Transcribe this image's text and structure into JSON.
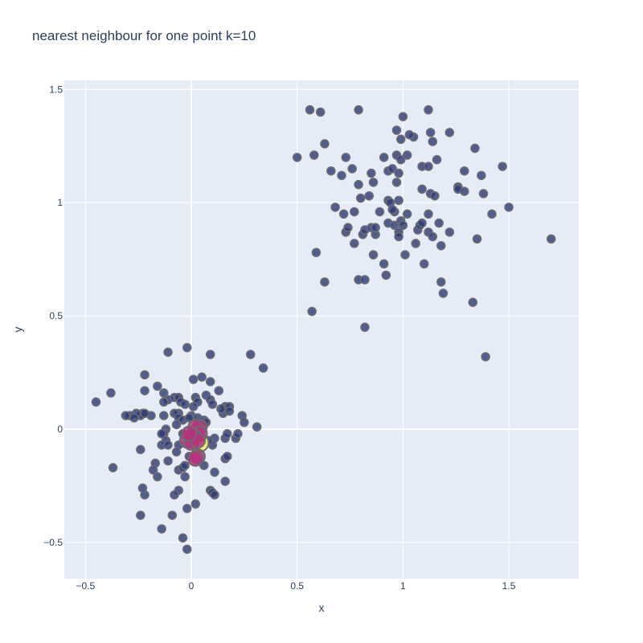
{
  "chart_data": {
    "type": "scatter",
    "title": "nearest neighbour for one point k=10",
    "xlabel": "x",
    "ylabel": "y",
    "xlim": [
      -0.6,
      1.83
    ],
    "ylim": [
      -0.66,
      1.54
    ],
    "x_ticks": [
      -0.5,
      0,
      0.5,
      1,
      1.5
    ],
    "y_ticks": [
      -0.5,
      0,
      0.5,
      1,
      1.5
    ],
    "x_tick_labels": [
      "−0.5",
      "0",
      "0.5",
      "1",
      "1.5"
    ],
    "y_tick_labels": [
      "−0.5",
      "0",
      "0.5",
      "1",
      "1.5"
    ],
    "grid": true,
    "colors": {
      "plot_bg": "#e5ecf6",
      "grid": "#ffffff",
      "point_fill": "#2b3a7a",
      "point_stroke": "#6c6c6c",
      "neighbour_fill": "#b8307f",
      "query_fill": "#f0f060",
      "text": "#2a3f5f"
    },
    "series": [
      {
        "role": "points",
        "points": [
          [
            0.56,
            1.41
          ],
          [
            0.61,
            1.4
          ],
          [
            0.79,
            1.41
          ],
          [
            1.12,
            1.41
          ],
          [
            1.0,
            1.38
          ],
          [
            0.97,
            1.32
          ],
          [
            1.22,
            1.31
          ],
          [
            1.13,
            1.31
          ],
          [
            1.14,
            1.27
          ],
          [
            0.99,
            1.28
          ],
          [
            1.05,
            1.29
          ],
          [
            1.03,
            1.3
          ],
          [
            0.63,
            1.26
          ],
          [
            1.34,
            1.24
          ],
          [
            0.5,
            1.2
          ],
          [
            0.58,
            1.21
          ],
          [
            0.73,
            1.2
          ],
          [
            0.91,
            1.2
          ],
          [
            1.02,
            1.21
          ],
          [
            0.97,
            1.21
          ],
          [
            0.99,
            1.19
          ],
          [
            1.16,
            1.19
          ],
          [
            1.09,
            1.16
          ],
          [
            1.12,
            1.16
          ],
          [
            1.47,
            1.16
          ],
          [
            0.66,
            1.14
          ],
          [
            0.71,
            1.12
          ],
          [
            0.76,
            1.15
          ],
          [
            0.85,
            1.13
          ],
          [
            0.93,
            1.14
          ],
          [
            0.95,
            1.15
          ],
          [
            0.98,
            1.13
          ],
          [
            0.97,
            1.09
          ],
          [
            0.86,
            1.09
          ],
          [
            1.29,
            1.14
          ],
          [
            1.37,
            1.12
          ],
          [
            0.79,
            1.08
          ],
          [
            1.09,
            1.06
          ],
          [
            1.13,
            1.04
          ],
          [
            1.26,
            1.07
          ],
          [
            1.26,
            1.06
          ],
          [
            1.29,
            1.05
          ],
          [
            1.15,
            1.03
          ],
          [
            0.8,
            1.02
          ],
          [
            0.84,
            1.03
          ],
          [
            0.93,
            1.01
          ],
          [
            0.94,
            1.0
          ],
          [
            0.98,
            1.01
          ],
          [
            1.38,
            1.04
          ],
          [
            1.5,
            0.98
          ],
          [
            0.68,
            0.98
          ],
          [
            0.72,
            0.95
          ],
          [
            0.77,
            0.96
          ],
          [
            0.89,
            0.96
          ],
          [
            0.96,
            0.96
          ],
          [
            0.95,
            0.97
          ],
          [
            1.02,
            0.95
          ],
          [
            1.12,
            0.95
          ],
          [
            1.42,
            0.95
          ],
          [
            0.73,
            0.87
          ],
          [
            0.74,
            0.89
          ],
          [
            0.81,
            0.86
          ],
          [
            0.82,
            0.88
          ],
          [
            0.85,
            0.89
          ],
          [
            0.87,
            0.86
          ],
          [
            0.87,
            0.89
          ],
          [
            0.93,
            0.91
          ],
          [
            0.96,
            0.9
          ],
          [
            0.99,
            0.92
          ],
          [
            1.0,
            0.9
          ],
          [
            0.98,
            0.87
          ],
          [
            0.98,
            0.85
          ],
          [
            1.07,
            0.88
          ],
          [
            1.08,
            0.9
          ],
          [
            1.09,
            0.91
          ],
          [
            1.12,
            0.87
          ],
          [
            1.14,
            0.85
          ],
          [
            1.17,
            0.91
          ],
          [
            1.22,
            0.87
          ],
          [
            1.35,
            0.84
          ],
          [
            1.7,
            0.84
          ],
          [
            0.77,
            0.82
          ],
          [
            1.06,
            0.82
          ],
          [
            1.18,
            0.81
          ],
          [
            0.59,
            0.78
          ],
          [
            0.86,
            0.77
          ],
          [
            1.01,
            0.77
          ],
          [
            0.91,
            0.73
          ],
          [
            1.1,
            0.73
          ],
          [
            0.92,
            0.68
          ],
          [
            0.63,
            0.65
          ],
          [
            0.79,
            0.66
          ],
          [
            0.82,
            0.66
          ],
          [
            1.18,
            0.65
          ],
          [
            1.19,
            0.6
          ],
          [
            1.33,
            0.56
          ],
          [
            0.57,
            0.52
          ],
          [
            0.82,
            0.45
          ],
          [
            1.39,
            0.32
          ],
          [
            -0.02,
            0.36
          ],
          [
            0.09,
            0.33
          ],
          [
            0.28,
            0.33
          ],
          [
            -0.11,
            0.34
          ],
          [
            0.34,
            0.27
          ],
          [
            0.05,
            0.23
          ],
          [
            0.01,
            0.22
          ],
          [
            0.09,
            0.21
          ],
          [
            -0.22,
            0.24
          ],
          [
            -0.38,
            0.16
          ],
          [
            -0.45,
            0.12
          ],
          [
            -0.22,
            0.17
          ],
          [
            -0.16,
            0.19
          ],
          [
            -0.13,
            0.16
          ],
          [
            -0.11,
            0.13
          ],
          [
            -0.08,
            0.14
          ],
          [
            -0.06,
            0.14
          ],
          [
            -0.05,
            0.12
          ],
          [
            -0.03,
            0.11
          ],
          [
            -0.13,
            0.12
          ],
          [
            0.02,
            0.14
          ],
          [
            0.03,
            0.12
          ],
          [
            0.07,
            0.15
          ],
          [
            0.09,
            0.13
          ],
          [
            0.1,
            0.11
          ],
          [
            0.13,
            0.17
          ],
          [
            -0.06,
            0.07
          ],
          [
            -0.08,
            0.07
          ],
          [
            -0.13,
            0.06
          ],
          [
            -0.19,
            0.06
          ],
          [
            -0.23,
            0.07
          ],
          [
            -0.24,
            0.06
          ],
          [
            -0.26,
            0.07
          ],
          [
            -0.29,
            0.06
          ],
          [
            -0.31,
            0.06
          ],
          [
            -0.27,
            0.05
          ],
          [
            -0.06,
            0.05
          ],
          [
            -0.04,
            0.04
          ],
          [
            0.0,
            0.06
          ],
          [
            -0.01,
            0.05
          ],
          [
            0.03,
            0.05
          ],
          [
            0.06,
            0.04
          ],
          [
            0.07,
            0.03
          ],
          [
            0.15,
            0.07
          ],
          [
            0.16,
            0.1
          ],
          [
            0.14,
            0.09
          ],
          [
            0.18,
            0.1
          ],
          [
            0.18,
            0.08
          ],
          [
            0.24,
            0.06
          ],
          [
            0.25,
            0.03
          ],
          [
            0.31,
            0.01
          ],
          [
            0.01,
            0.1
          ],
          [
            -0.12,
            0.0
          ],
          [
            -0.07,
            0.02
          ],
          [
            -0.13,
            -0.02
          ],
          [
            -0.14,
            -0.02
          ],
          [
            -0.12,
            -0.05
          ],
          [
            -0.14,
            -0.07
          ],
          [
            -0.11,
            -0.07
          ],
          [
            -0.06,
            -0.07
          ],
          [
            -0.04,
            -0.02
          ],
          [
            0.04,
            -0.04
          ],
          [
            0.11,
            -0.04
          ],
          [
            0.16,
            -0.04
          ],
          [
            0.21,
            -0.04
          ],
          [
            0.22,
            -0.02
          ],
          [
            0.17,
            -0.02
          ],
          [
            -0.24,
            -0.09
          ],
          [
            -0.07,
            -0.1
          ],
          [
            0.1,
            -0.07
          ],
          [
            0.08,
            -0.05
          ],
          [
            0.16,
            -0.13
          ],
          [
            0.17,
            -0.12
          ],
          [
            -0.17,
            -0.15
          ],
          [
            -0.11,
            -0.14
          ],
          [
            -0.06,
            -0.18
          ],
          [
            -0.04,
            -0.17
          ],
          [
            -0.03,
            -0.16
          ],
          [
            -0.01,
            -0.12
          ],
          [
            0.06,
            -0.16
          ],
          [
            0.11,
            -0.19
          ],
          [
            -0.18,
            -0.18
          ],
          [
            -0.16,
            -0.21
          ],
          [
            -0.03,
            -0.21
          ],
          [
            -0.06,
            -0.27
          ],
          [
            -0.08,
            -0.29
          ],
          [
            0.09,
            -0.27
          ],
          [
            0.1,
            -0.28
          ],
          [
            0.11,
            -0.29
          ],
          [
            0.16,
            -0.23
          ],
          [
            -0.22,
            -0.29
          ],
          [
            -0.23,
            -0.26
          ],
          [
            -0.02,
            -0.35
          ],
          [
            0.02,
            -0.33
          ],
          [
            -0.24,
            -0.38
          ],
          [
            -0.09,
            -0.38
          ],
          [
            -0.14,
            -0.44
          ],
          [
            -0.04,
            -0.48
          ],
          [
            -0.02,
            -0.53
          ],
          [
            -0.37,
            -0.17
          ],
          [
            -0.22,
            0.07
          ]
        ]
      },
      {
        "role": "neighbours",
        "points": [
          [
            0.04,
            0.01
          ],
          [
            0.02,
            0.01
          ],
          [
            0.04,
            -0.02
          ],
          [
            0.01,
            -0.03
          ],
          [
            -0.02,
            -0.05
          ],
          [
            0.0,
            -0.06
          ],
          [
            0.03,
            -0.05
          ],
          [
            -0.01,
            -0.02
          ],
          [
            0.03,
            -0.12
          ],
          [
            0.02,
            -0.13
          ]
        ]
      },
      {
        "role": "query",
        "points": [
          [
            0.04,
            -0.06
          ]
        ]
      }
    ]
  }
}
